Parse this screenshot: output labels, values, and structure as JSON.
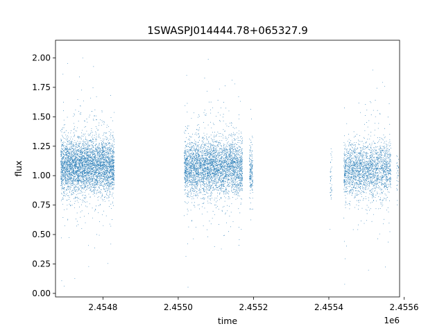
{
  "chart_data": {
    "type": "scatter",
    "title": "1SWASPJ014444.78+065327.9",
    "xlabel": "time",
    "ylabel": "flux",
    "x_offset_label": "1e6",
    "xlim": [
      2454674,
      2455588
    ],
    "ylim": [
      -0.03,
      2.15
    ],
    "x_ticks": [
      2454800,
      2455000,
      2455200,
      2455400,
      2455600
    ],
    "x_tick_labels": [
      "2.4548",
      "2.4550",
      "2.4552",
      "2.4554",
      "2.4556"
    ],
    "y_ticks": [
      0.0,
      0.25,
      0.5,
      0.75,
      1.0,
      1.25,
      1.5,
      1.75,
      2.0
    ],
    "y_tick_labels": [
      "0.00",
      "0.25",
      "0.50",
      "0.75",
      "1.00",
      "1.25",
      "1.50",
      "1.75",
      "2.00"
    ],
    "grid": false,
    "point_color": "#1f77b4",
    "series": [
      {
        "clusters": [
          {
            "x_start": 2454688,
            "x_end": 2454830,
            "center": 1.08,
            "count": 4200
          },
          {
            "x_start": 2455016,
            "x_end": 2455171,
            "center": 1.07,
            "count": 3800
          },
          {
            "x_start": 2455189,
            "x_end": 2455198,
            "center": 1.05,
            "count": 180
          },
          {
            "x_start": 2455403,
            "x_end": 2455408,
            "center": 0.98,
            "count": 40
          },
          {
            "x_start": 2455440,
            "x_end": 2455565,
            "center": 1.05,
            "count": 2200
          },
          {
            "x_start": 2455580,
            "x_end": 2455586,
            "center": 1.02,
            "count": 30
          }
        ]
      }
    ]
  }
}
